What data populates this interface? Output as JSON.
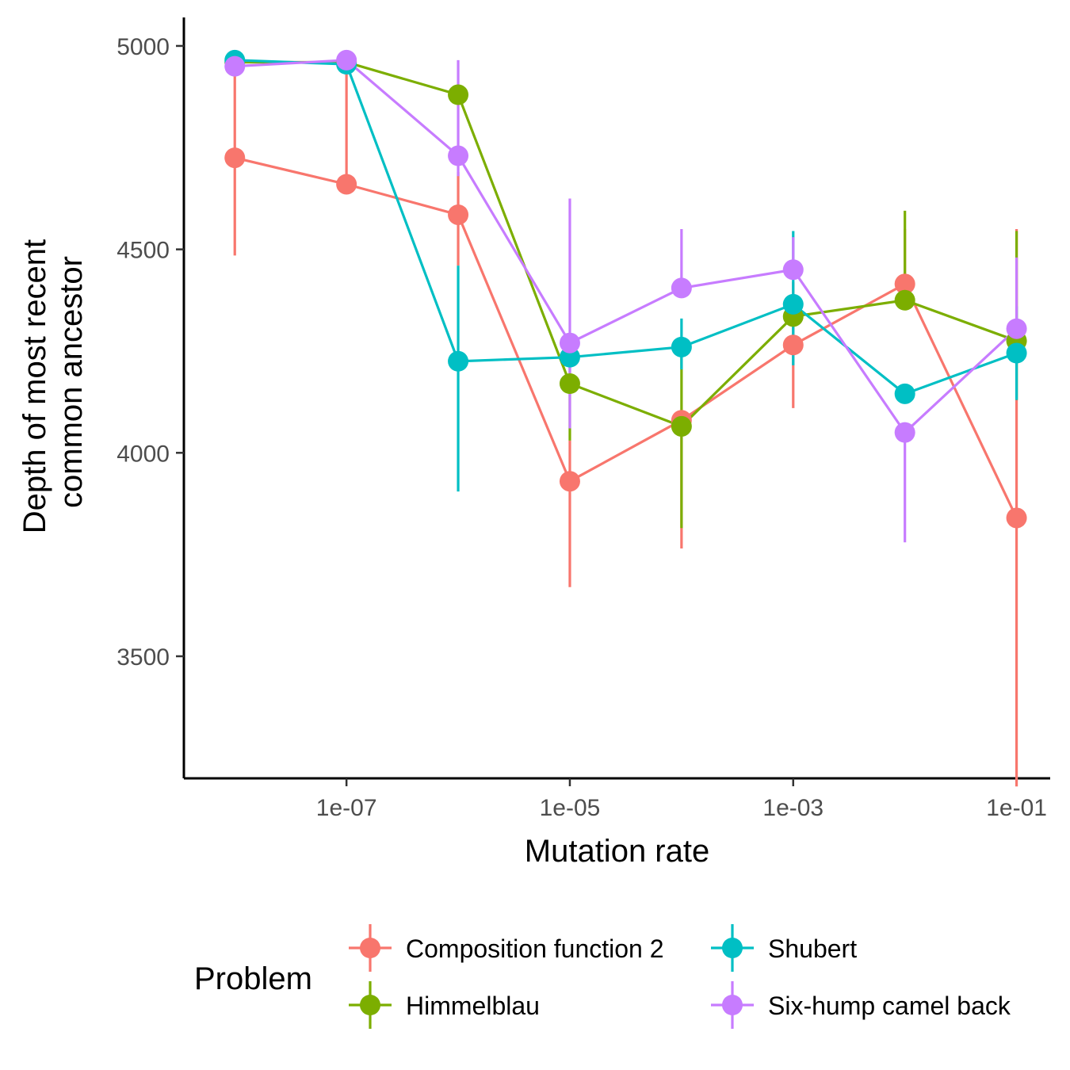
{
  "chart_data": {
    "type": "line",
    "xlabel": "Mutation rate",
    "ylabel_lines": [
      "Depth of most recent",
      "common ancestor"
    ],
    "x_scale": "log10",
    "x": [
      1e-08,
      1e-07,
      1e-06,
      1e-05,
      0.0001,
      0.001,
      0.01,
      0.1
    ],
    "xlim": [
      3.5e-09,
      0.2
    ],
    "ylim": [
      3200,
      5070
    ],
    "x_ticks": [
      1e-07,
      1e-05,
      0.001,
      0.1
    ],
    "x_tick_labels": [
      "1e-07",
      "1e-05",
      "1e-03",
      "1e-01"
    ],
    "y_ticks": [
      3500,
      4000,
      4500,
      5000
    ],
    "y_tick_labels": [
      "3500",
      "4000",
      "4500",
      "5000"
    ],
    "grid": false,
    "legend": {
      "title": "Problem",
      "placement": "bottom"
    },
    "series": [
      {
        "name": "Composition function 2",
        "color": "#F8766D",
        "values": [
          4725,
          4660,
          4585,
          3930,
          4080,
          4265,
          4415,
          3840
        ],
        "lower": [
          4485,
          4660,
          4460,
          3670,
          3765,
          4110,
          4415,
          3180
        ],
        "upper": [
          4960,
          4960,
          4690,
          4030,
          4090,
          4420,
          4550,
          4550
        ]
      },
      {
        "name": "Himmelblau",
        "color": "#7CAE00",
        "values": [
          4960,
          4960,
          4880,
          4170,
          4065,
          4335,
          4375,
          4275
        ],
        "lower": [
          4960,
          4960,
          4880,
          4030,
          3815,
          4335,
          4375,
          4130
        ],
        "upper": [
          4960,
          4960,
          4880,
          4200,
          4280,
          4335,
          4595,
          4545
        ]
      },
      {
        "name": "Shubert",
        "color": "#00BFC4",
        "values": [
          4965,
          4955,
          4225,
          4235,
          4260,
          4365,
          4145,
          4245
        ],
        "lower": [
          4965,
          4955,
          3905,
          4200,
          4205,
          4215,
          4145,
          4130
        ],
        "upper": [
          4965,
          4955,
          4460,
          4260,
          4330,
          4545,
          4145,
          4360
        ]
      },
      {
        "name": "Six-hump camel back",
        "color": "#C77CFF",
        "values": [
          4950,
          4965,
          4730,
          4270,
          4405,
          4450,
          4050,
          4305
        ],
        "lower": [
          4950,
          4965,
          4680,
          4060,
          4405,
          4450,
          3780,
          4290
        ],
        "upper": [
          4950,
          4965,
          4965,
          4625,
          4550,
          4530,
          4050,
          4480
        ]
      }
    ]
  }
}
